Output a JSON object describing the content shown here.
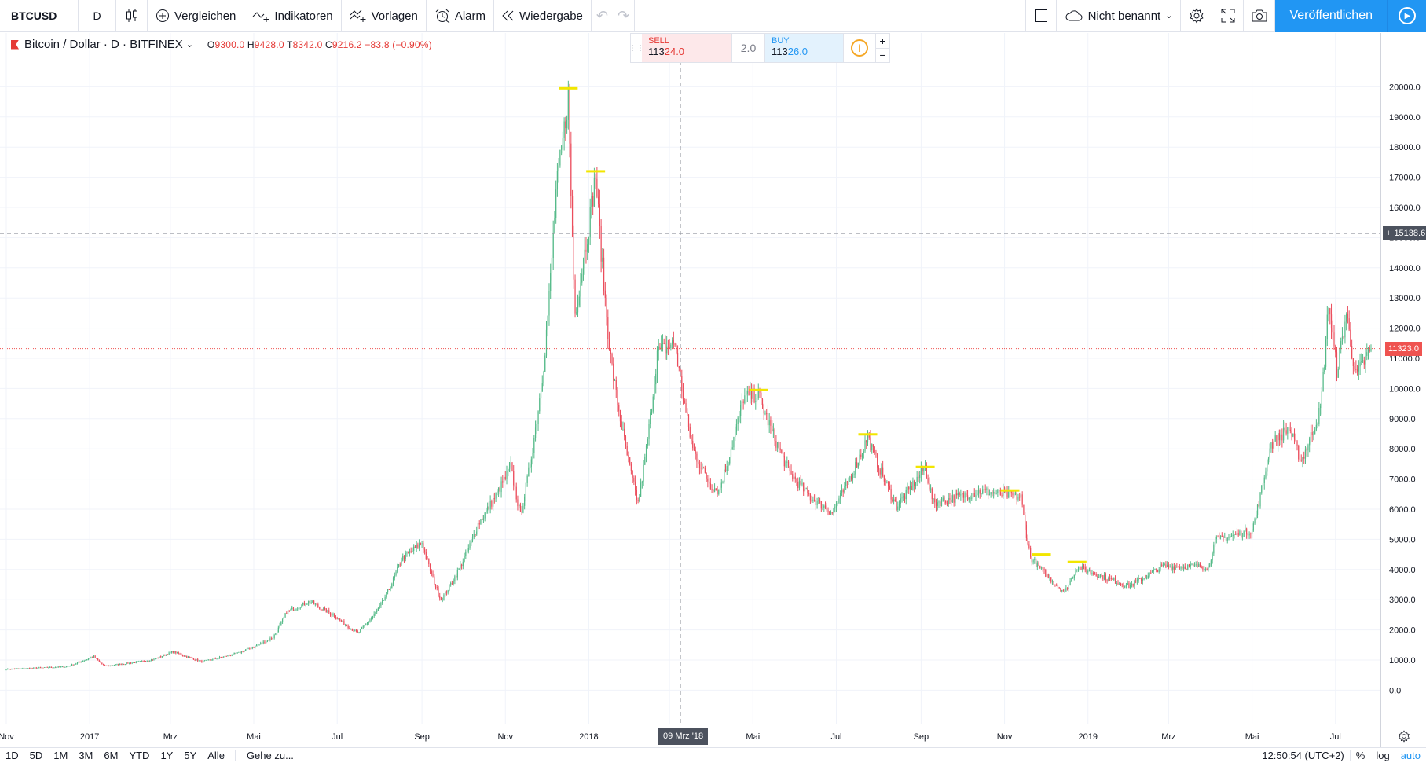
{
  "toolbar": {
    "symbol": "BTCUSD",
    "interval": "D",
    "compare_label": "Vergleichen",
    "indicators_label": "Indikatoren",
    "templates_label": "Vorlagen",
    "alert_label": "Alarm",
    "replay_label": "Wiedergabe",
    "layout_name": "Nicht benannt",
    "publish_label": "Veröffentlichen"
  },
  "legend": {
    "title": "Bitcoin / Dollar · D · BITFINEX",
    "o_label": "O",
    "o_value": "9300.0",
    "h_label": "H",
    "h_value": "9428.0",
    "l_label": "T",
    "l_value": "8342.0",
    "c_label": "C",
    "c_value": "9216.2",
    "change": "−83.8 (−0.90%)"
  },
  "trade": {
    "sell_label": "SELL",
    "sell_big": "113",
    "sell_small": "24.0",
    "qty": "2.0",
    "buy_label": "BUY",
    "buy_big": "113",
    "buy_small": "26.0",
    "plus": "+",
    "minus": "−"
  },
  "crosshair": {
    "price_label": "15138.6",
    "price_value": 15138.6,
    "date_label": "09 Mrz '18"
  },
  "last_price": {
    "label": "11323.0",
    "value": 11323.0
  },
  "bottom": {
    "ranges": [
      "1D",
      "5D",
      "1M",
      "3M",
      "6M",
      "YTD",
      "1Y",
      "5Y",
      "Alle"
    ],
    "goto": "Gehe zu...",
    "time": "12:50:54 (UTC+2)",
    "pct": "%",
    "log": "log",
    "auto": "auto"
  },
  "colors": {
    "up": "#53b987",
    "down": "#eb4d5c",
    "marker": "#f2e600",
    "grid": "#f0f3fa",
    "crosshair": "#9598a1",
    "last_line": "#ef5350"
  },
  "chart_data": {
    "type": "candlestick",
    "title": "Bitcoin / Dollar · D · BITFINEX",
    "ylim": [
      -250,
      21000
    ],
    "y_ticks": [
      0,
      1000,
      2000,
      3000,
      4000,
      5000,
      6000,
      7000,
      8000,
      9000,
      10000,
      11000,
      12000,
      13000,
      14000,
      15000,
      16000,
      17000,
      18000,
      19000,
      20000
    ],
    "y_tick_labels": [
      "0.0",
      "1000.0",
      "2000.0",
      "3000.0",
      "4000.0",
      "5000.0",
      "6000.0",
      "7000.0",
      "8000.0",
      "9000.0",
      "10000.0",
      "11000.0",
      "12000.0",
      "13000.0",
      "14000.0",
      "15000.0",
      "16000.0",
      "17000.0",
      "18000.0",
      "19000.0",
      "20000.0"
    ],
    "x_range": [
      "2016-11-01",
      "2019-07-27"
    ],
    "x_ticks": [
      {
        "label": "Nov",
        "date": "2016-11-01"
      },
      {
        "label": "2017",
        "date": "2017-01-01"
      },
      {
        "label": "Mrz",
        "date": "2017-03-01"
      },
      {
        "label": "Mai",
        "date": "2017-05-01"
      },
      {
        "label": "Jul",
        "date": "2017-07-01"
      },
      {
        "label": "Sep",
        "date": "2017-09-01"
      },
      {
        "label": "Nov",
        "date": "2017-11-01"
      },
      {
        "label": "2018",
        "date": "2018-01-01"
      },
      {
        "label": "Mrz",
        "date": "2018-03-01"
      },
      {
        "label": "Mai",
        "date": "2018-05-01"
      },
      {
        "label": "Jul",
        "date": "2018-07-01"
      },
      {
        "label": "Sep",
        "date": "2018-09-01"
      },
      {
        "label": "Nov",
        "date": "2018-11-01"
      },
      {
        "label": "2019",
        "date": "2019-01-01"
      },
      {
        "label": "Mrz",
        "date": "2019-03-01"
      },
      {
        "label": "Mai",
        "date": "2019-05-01"
      },
      {
        "label": "Jul",
        "date": "2019-07-01"
      }
    ],
    "price_path": [
      [
        "2016-11-01",
        700
      ],
      [
        "2016-12-15",
        780
      ],
      [
        "2017-01-04",
        1120
      ],
      [
        "2017-01-12",
        800
      ],
      [
        "2017-02-15",
        1000
      ],
      [
        "2017-03-03",
        1280
      ],
      [
        "2017-03-24",
        950
      ],
      [
        "2017-04-20",
        1240
      ],
      [
        "2017-05-15",
        1750
      ],
      [
        "2017-05-25",
        2600
      ],
      [
        "2017-06-11",
        2950
      ],
      [
        "2017-06-28",
        2500
      ],
      [
        "2017-07-16",
        1900
      ],
      [
        "2017-08-01",
        2750
      ],
      [
        "2017-08-17",
        4350
      ],
      [
        "2017-09-01",
        4900
      ],
      [
        "2017-09-15",
        3000
      ],
      [
        "2017-10-12",
        5500
      ],
      [
        "2017-11-05",
        7400
      ],
      [
        "2017-11-12",
        5800
      ],
      [
        "2017-11-29",
        10800
      ],
      [
        "2017-12-08",
        16500
      ],
      [
        "2017-12-17",
        19700
      ],
      [
        "2017-12-22",
        12500
      ],
      [
        "2017-12-28",
        14200
      ],
      [
        "2018-01-06",
        17100
      ],
      [
        "2018-01-17",
        11000
      ],
      [
        "2018-02-06",
        6200
      ],
      [
        "2018-02-20",
        11200
      ],
      [
        "2018-03-05",
        11500
      ],
      [
        "2018-03-18",
        8000
      ],
      [
        "2018-03-31",
        6800
      ],
      [
        "2018-04-06",
        6600
      ],
      [
        "2018-04-24",
        9700
      ],
      [
        "2018-05-05",
        9800
      ],
      [
        "2018-05-28",
        7200
      ],
      [
        "2018-06-12",
        6400
      ],
      [
        "2018-06-28",
        5900
      ],
      [
        "2018-07-24",
        8400
      ],
      [
        "2018-08-14",
        6100
      ],
      [
        "2018-09-04",
        7400
      ],
      [
        "2018-09-10",
        6200
      ],
      [
        "2018-10-15",
        6600
      ],
      [
        "2018-11-13",
        6400
      ],
      [
        "2018-11-20",
        4400
      ],
      [
        "2018-12-15",
        3250
      ],
      [
        "2018-12-24",
        4100
      ],
      [
        "2019-01-31",
        3450
      ],
      [
        "2019-02-24",
        4100
      ],
      [
        "2019-03-31",
        4100
      ],
      [
        "2019-04-03",
        4950
      ],
      [
        "2019-05-01",
        5300
      ],
      [
        "2019-05-14",
        8100
      ],
      [
        "2019-05-28",
        8700
      ],
      [
        "2019-06-06",
        7600
      ],
      [
        "2019-06-20",
        9300
      ],
      [
        "2019-06-26",
        12900
      ],
      [
        "2019-07-02",
        10600
      ],
      [
        "2019-07-09",
        12500
      ],
      [
        "2019-07-16",
        10400
      ],
      [
        "2019-07-27",
        11323
      ]
    ],
    "high_markers": [
      {
        "date": "2017-12-17",
        "value": 19950
      },
      {
        "date": "2018-01-06",
        "value": 17200
      },
      {
        "date": "2018-05-05",
        "value": 9950
      },
      {
        "date": "2018-07-24",
        "value": 8480
      },
      {
        "date": "2018-09-04",
        "value": 7400
      },
      {
        "date": "2018-11-05",
        "value": 6620
      },
      {
        "date": "2018-11-28",
        "value": 4500
      },
      {
        "date": "2018-12-24",
        "value": 4250
      }
    ]
  }
}
